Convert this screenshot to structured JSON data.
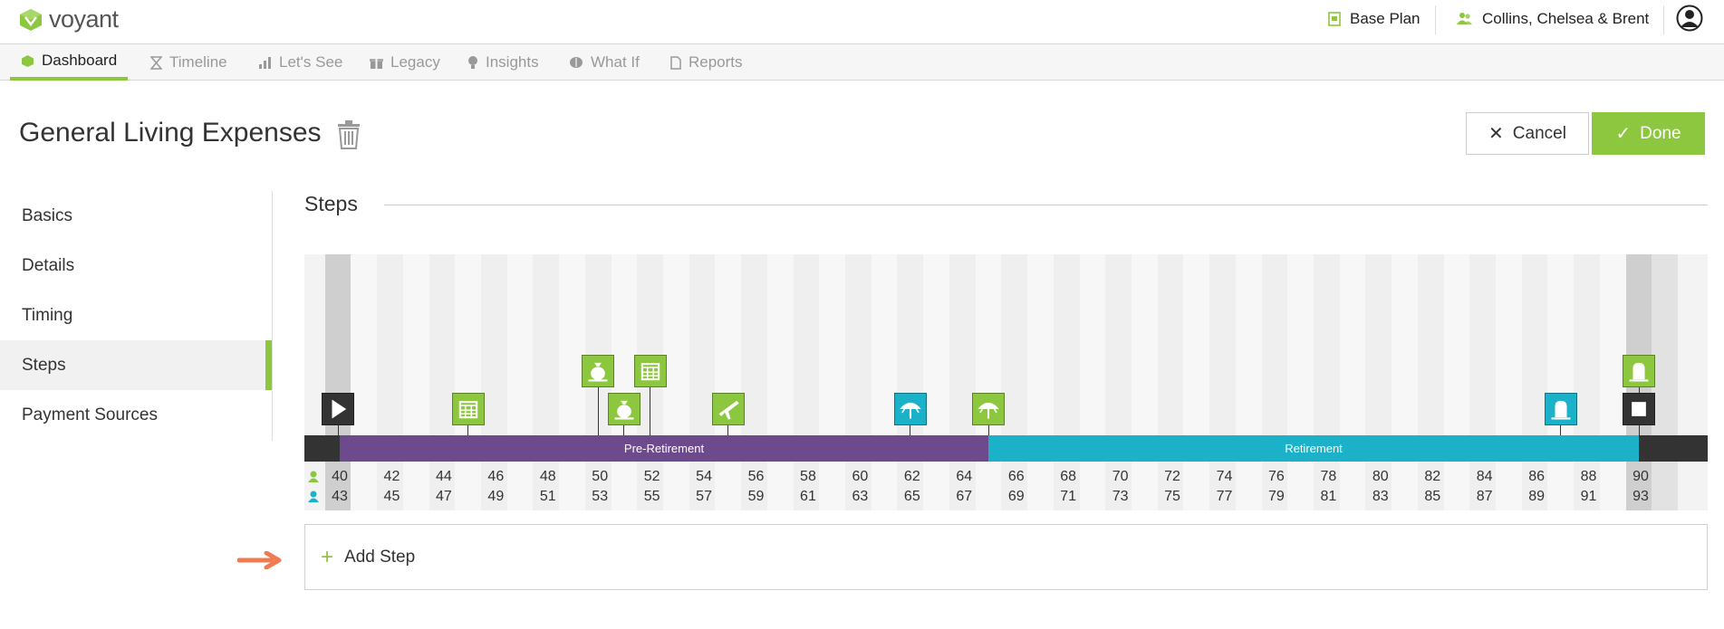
{
  "app": {
    "logo_text": "voyant"
  },
  "header": {
    "plan_label": "Base Plan",
    "client_label": "Collins, Chelsea & Brent"
  },
  "nav": {
    "tabs": [
      {
        "label": "Dashboard",
        "icon": "cube-icon",
        "active": true
      },
      {
        "label": "Timeline",
        "icon": "hourglass-icon"
      },
      {
        "label": "Let's See",
        "icon": "bar-chart-icon"
      },
      {
        "label": "Legacy",
        "icon": "gift-icon"
      },
      {
        "label": "Insights",
        "icon": "lightbulb-icon"
      },
      {
        "label": "What If",
        "icon": "brain-icon"
      },
      {
        "label": "Reports",
        "icon": "pdf-icon"
      }
    ]
  },
  "page": {
    "title": "General Living Expenses",
    "cancel_label": "Cancel",
    "done_label": "Done"
  },
  "sidebar": {
    "items": [
      {
        "label": "Basics"
      },
      {
        "label": "Details"
      },
      {
        "label": "Timing"
      },
      {
        "label": "Steps",
        "active": true
      },
      {
        "label": "Payment Sources"
      }
    ]
  },
  "section": {
    "title": "Steps"
  },
  "timeline": {
    "phases": [
      {
        "label": "Pre-Retirement",
        "color": "#6d4a8c"
      },
      {
        "label": "Retirement",
        "color": "#1bb2c9"
      }
    ],
    "person1_ages": [
      "40",
      "42",
      "44",
      "46",
      "48",
      "50",
      "52",
      "54",
      "56",
      "58",
      "60",
      "62",
      "64",
      "66",
      "68",
      "70",
      "72",
      "74",
      "76",
      "78",
      "80",
      "82",
      "84",
      "86",
      "88",
      "90"
    ],
    "person2_ages": [
      "43",
      "45",
      "47",
      "49",
      "51",
      "53",
      "55",
      "57",
      "59",
      "61",
      "63",
      "65",
      "67",
      "69",
      "71",
      "73",
      "75",
      "77",
      "79",
      "81",
      "83",
      "85",
      "87",
      "89",
      "91",
      "93"
    ],
    "events": [
      {
        "age": 40,
        "icon": "play-icon",
        "tier": 0,
        "color": "#333333"
      },
      {
        "age": 45,
        "icon": "calendar-icon",
        "tier": 0,
        "color": "#8dc63f"
      },
      {
        "age": 50,
        "icon": "money-bag-icon",
        "tier": 1,
        "color": "#8dc63f"
      },
      {
        "age": 51,
        "icon": "money-bag-icon",
        "tier": 0,
        "color": "#8dc63f"
      },
      {
        "age": 52,
        "icon": "calendar-icon",
        "tier": 1,
        "color": "#8dc63f"
      },
      {
        "age": 55,
        "icon": "airplane-icon",
        "tier": 0,
        "color": "#8dc63f"
      },
      {
        "age": 62,
        "icon": "umbrella-icon",
        "tier": 0,
        "color": "#1bb2c9"
      },
      {
        "age": 65,
        "icon": "umbrella-icon",
        "tier": 0,
        "color": "#8dc63f"
      },
      {
        "age": 87,
        "icon": "tombstone-icon",
        "tier": 0,
        "color": "#1bb2c9"
      },
      {
        "age": 90,
        "icon": "tombstone-icon",
        "tier": 1,
        "color": "#8dc63f"
      },
      {
        "age": 90,
        "icon": "stop-icon",
        "tier": 0,
        "color": "#333333"
      }
    ]
  },
  "add_step": {
    "label": "Add Step"
  },
  "colors": {
    "accent": "#8dc63f",
    "pre_retirement": "#6d4a8c",
    "retirement": "#1bb2c9"
  }
}
